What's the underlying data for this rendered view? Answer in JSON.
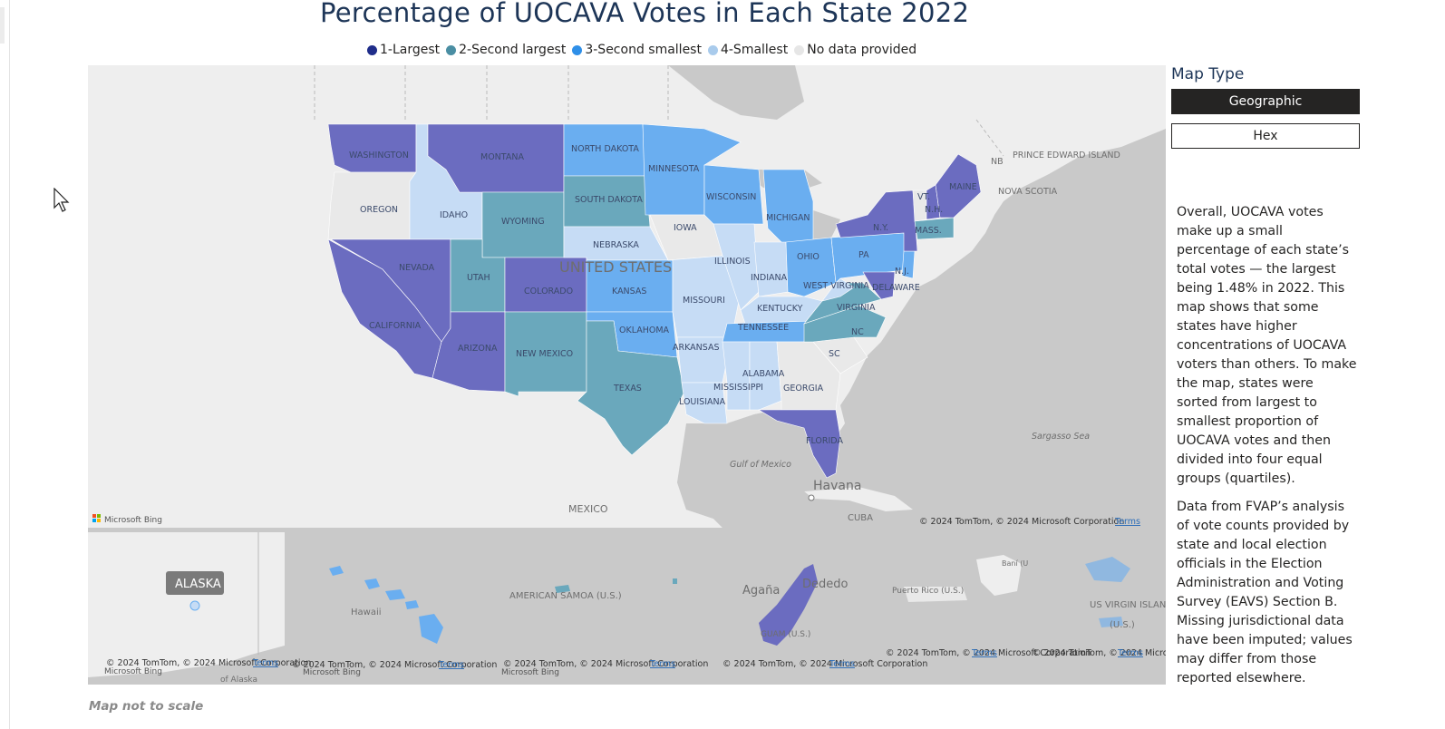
{
  "title": "Percentage of UOCAVA Votes in Each State 2022",
  "legend": [
    {
      "label": "1-Largest",
      "color": "#1f2d8a"
    },
    {
      "label": "2-Second largest",
      "color": "#4a8ea3"
    },
    {
      "label": "3-Second smallest",
      "color": "#2f8fe8"
    },
    {
      "label": "4-Smallest",
      "color": "#a9cbec"
    },
    {
      "label": "No data provided",
      "color": "#e6e6e6"
    }
  ],
  "colors": {
    "q1": "#6b6cc0",
    "q2": "#6aa8bc",
    "q3": "#6aaef0",
    "q4": "#c6dcf5",
    "nodata": "#e9e9e9",
    "land": "#eeeeee",
    "water": "#c9c9c9"
  },
  "map_type": {
    "title": "Map Type",
    "options": [
      "Geographic",
      "Hex"
    ],
    "selected": "Geographic"
  },
  "description": [
    "Overall, UOCAVA votes make up a small percentage of each state’s total votes — the largest being 1.48% in 2022. This map shows that some states have higher concentrations of UOCAVA voters than others. To make the map, states were sorted from largest to smallest proportion of UOCAVA votes and then divided into four equal groups (quartiles).",
    "Data from FVAP’s analysis of vote counts provided by state and local election officials in the Election Administration and Voting Survey (EAVS) Section B. Missing jurisdictional data have been imputed; values may differ from those reported elsewhere."
  ],
  "footnote": "Map not to scale",
  "map_labels": {
    "states": [
      "WASHINGTON",
      "MONTANA",
      "NORTH DAKOTA",
      "MINNESOTA",
      "OREGON",
      "IDAHO",
      "SOUTH DAKOTA",
      "WISCONSIN",
      "WYOMING",
      "MICHIGAN",
      "NEBRASKA",
      "IOWA",
      "NEVADA",
      "UTAH",
      "COLORADO",
      "KANSAS",
      "ILLINOIS",
      "INDIANA",
      "OHIO",
      "PA",
      "N.Y.",
      "MAINE",
      "N.H.",
      "VT.",
      "MASS.",
      "N.J.",
      "DELAWARE",
      "WEST VIRGINIA",
      "VIRGINIA",
      "KENTUCKY",
      "MISSOURI",
      "CALIFORNIA",
      "ARIZONA",
      "NEW MEXICO",
      "OKLAHOMA",
      "ARKANSAS",
      "TENNESSEE",
      "NC",
      "SC",
      "GEORGIA",
      "ALABAMA",
      "MISSISSIPPI",
      "LOUISIANA",
      "TEXAS",
      "FLORIDA"
    ],
    "country": "UNITED STATES",
    "places": [
      "NB",
      "PRINCE EDWARD ISLAND",
      "NOVA SCOTIA",
      "Sargasso Sea",
      "Gulf of Mexico",
      "Havana",
      "CUBA",
      "MEXICO"
    ],
    "inset_places": [
      "ALASKA",
      "of Alaska",
      "Hawaii",
      "AMERICAN SAMOA (U.S.)",
      "Agaña",
      "Dededo",
      "GUAM (U.S.)",
      "Puerto Rico (U.S.)",
      "Baní (U.S.)",
      "US VIRGIN ISLANDS",
      "(U.S.)"
    ]
  },
  "attribution": {
    "main": "© 2024 TomTom, © 2024 Microsoft Corporation",
    "short": "© 2024 TomTom, © 2024 Microsoft Corporation",
    "terms": "Terms",
    "bing": "Microsoft Bing"
  }
}
